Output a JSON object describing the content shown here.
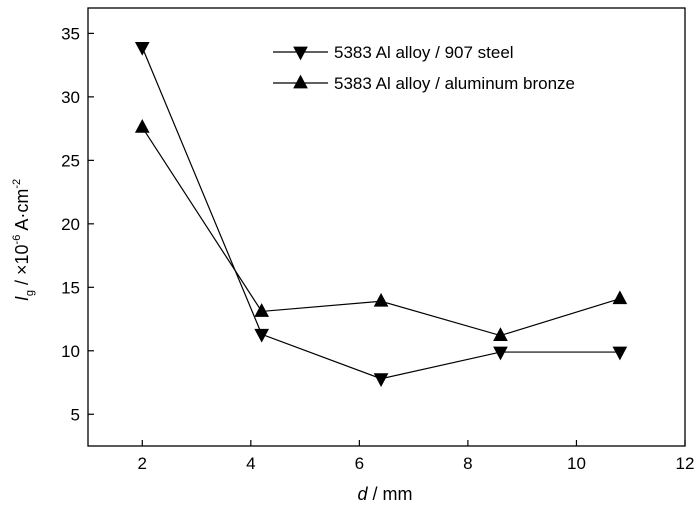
{
  "chart_data": {
    "type": "line",
    "xlabel": {
      "var": "d",
      "rest": " / mm"
    },
    "ylabel": {
      "var": "I",
      "sub": "g",
      "mid": " / ×10",
      "sup1": "-6",
      "unit": " A·cm",
      "sup2": "-2"
    },
    "xlim": [
      1,
      12
    ],
    "ylim": [
      2.5,
      37
    ],
    "xticks": [
      2,
      4,
      6,
      8,
      10,
      12
    ],
    "yticks": [
      5,
      10,
      15,
      20,
      25,
      30,
      35
    ],
    "grid": false,
    "legend_position": "top-right",
    "series": [
      {
        "name": "5383 Al alloy / 907 steel",
        "marker": "triangle-down",
        "x": [
          2,
          4.2,
          6.4,
          8.6,
          10.8
        ],
        "y": [
          33.9,
          11.3,
          7.8,
          9.9,
          9.9
        ]
      },
      {
        "name": "5383 Al alloy / aluminum bronze",
        "marker": "triangle-up",
        "x": [
          2,
          4.2,
          6.4,
          8.6,
          10.8
        ],
        "y": [
          27.6,
          13.1,
          13.9,
          11.2,
          14.1
        ]
      }
    ]
  }
}
